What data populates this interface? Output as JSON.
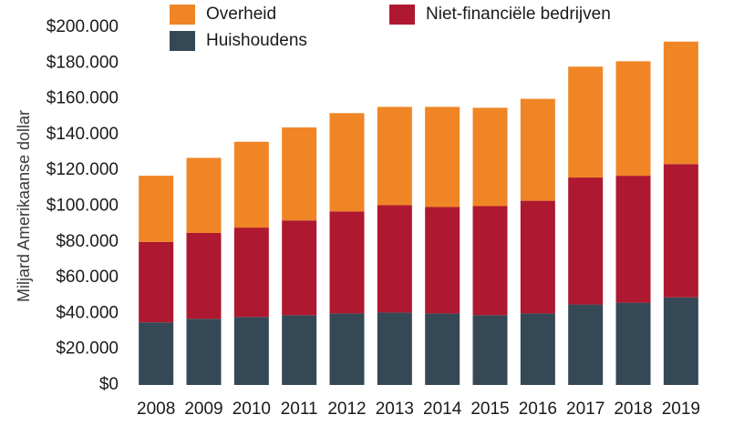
{
  "chart_data": {
    "type": "bar",
    "stacked": true,
    "ylabel": "Miljard Amerikaanse dollar",
    "ylim": [
      0,
      200000
    ],
    "yticks": [
      0,
      20000,
      40000,
      60000,
      80000,
      100000,
      120000,
      140000,
      160000,
      180000,
      200000
    ],
    "ytick_labels": [
      "$0",
      "$20.000",
      "$40.000",
      "$60.000",
      "$80.000",
      "$100.000",
      "$120.000",
      "$140.000",
      "$160.000",
      "$180.000",
      "$200.000"
    ],
    "grid": false,
    "legend_position": "top",
    "categories": [
      "2008",
      "2009",
      "2010",
      "2011",
      "2012",
      "2013",
      "2014",
      "2015",
      "2016",
      "2017",
      "2018",
      "2019"
    ],
    "series": [
      {
        "name": "Huishoudens",
        "color": "#344955",
        "values": [
          35000,
          37000,
          38000,
          39000,
          40000,
          40500,
          40000,
          39000,
          40000,
          45000,
          46000,
          49000
        ]
      },
      {
        "name": "Niet-financiële bedrijven",
        "color": "#AE1830",
        "values": [
          45000,
          48000,
          50000,
          53000,
          57000,
          60000,
          59500,
          61000,
          63000,
          71000,
          71000,
          74500
        ]
      },
      {
        "name": "Overheid",
        "color": "#F08526",
        "values": [
          37000,
          42000,
          48000,
          52000,
          55000,
          55000,
          56000,
          55000,
          57000,
          62000,
          64000,
          68500
        ]
      }
    ],
    "legend_order": [
      2,
      1,
      0
    ]
  }
}
